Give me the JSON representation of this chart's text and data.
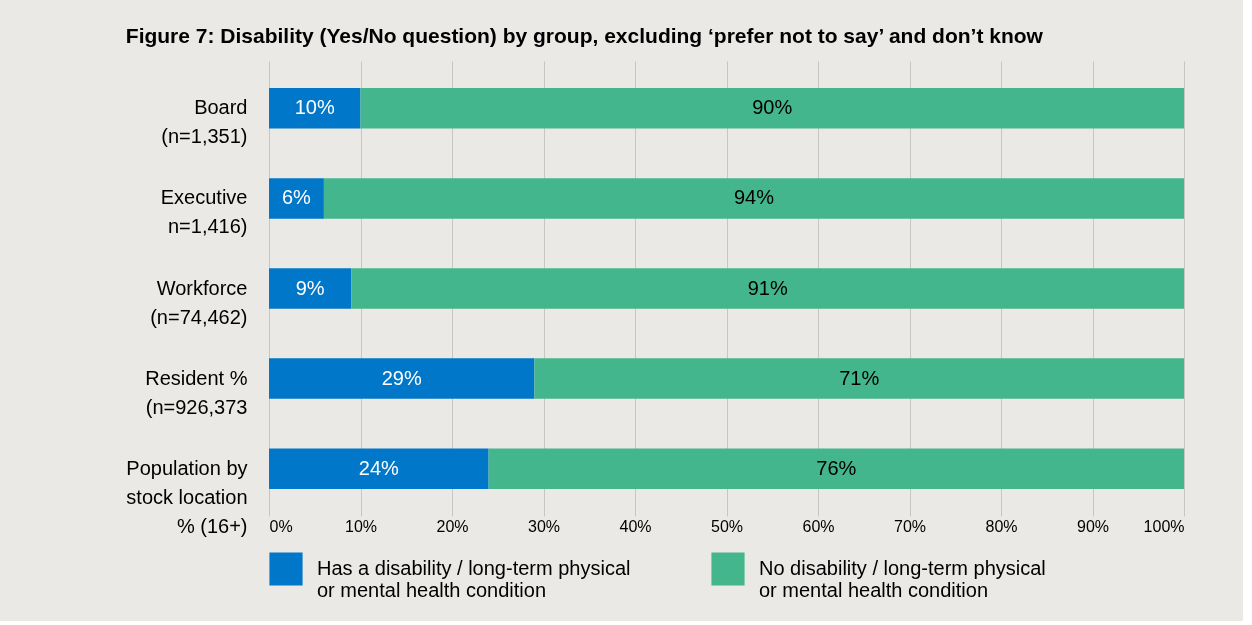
{
  "chart_data": {
    "type": "bar",
    "orientation": "horizontal",
    "stacked": true,
    "title": "Figure 7: Disability (Yes/No question) by group, excluding ‘prefer not to say’ and don’t know",
    "categories": [
      "Board\n(n=1,351)",
      "Executive\nn=1,416)",
      "Workforce\n(n=74,462)",
      "Resident %\n(n=926,373",
      "Population by\nstock location\n% (16+)"
    ],
    "series": [
      {
        "name": "Has a disability / long-term physical\nor mental health condition",
        "color": "#0077c8",
        "values": [
          10,
          6,
          9,
          29,
          24
        ],
        "value_labels": [
          "10%",
          "6%",
          "9%",
          "29%",
          "24%"
        ]
      },
      {
        "name": "No disability / long-term physical\nor mental health condition",
        "color": "#44b68e",
        "values": [
          90,
          94,
          91,
          71,
          76
        ],
        "value_labels": [
          "90%",
          "94%",
          "91%",
          "71%",
          "76%"
        ]
      }
    ],
    "xlim": [
      0,
      100
    ],
    "xticks": [
      {
        "value": 0,
        "label": "0%"
      },
      {
        "value": 10,
        "label": "10%"
      },
      {
        "value": 20,
        "label": "20%"
      },
      {
        "value": 30,
        "label": "30%"
      },
      {
        "value": 40,
        "label": "40%"
      },
      {
        "value": 50,
        "label": "50%"
      },
      {
        "value": 60,
        "label": "60%"
      },
      {
        "value": 70,
        "label": "70%"
      },
      {
        "value": 80,
        "label": "80%"
      },
      {
        "value": 90,
        "label": "90%"
      },
      {
        "value": 100,
        "label": "100%"
      }
    ],
    "grid": "x",
    "legend": "bottom"
  }
}
